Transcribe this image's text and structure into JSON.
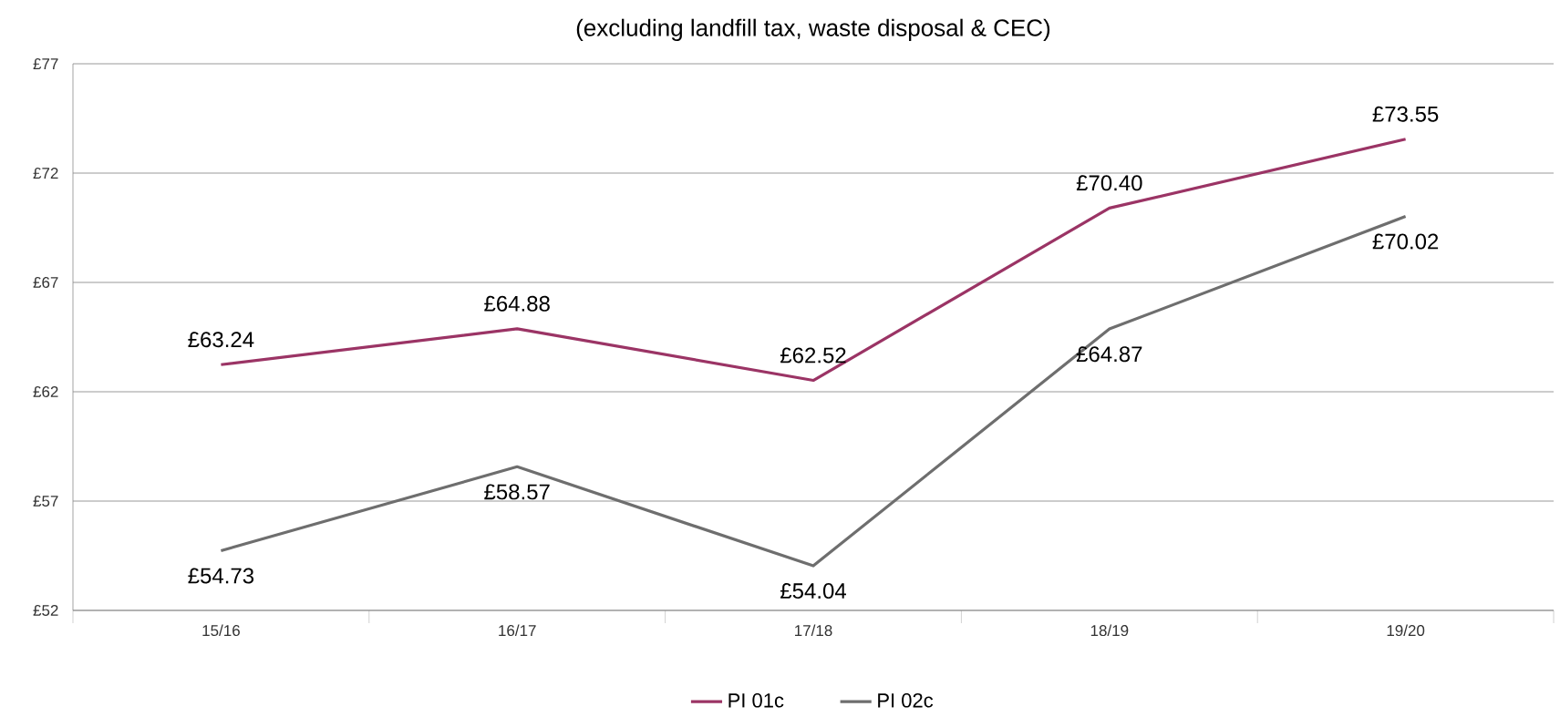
{
  "chart_data": {
    "type": "line",
    "subtitle": "(excluding landfill tax, waste disposal & CEC)",
    "categories": [
      "15/16",
      "16/17",
      "17/18",
      "18/19",
      "19/20"
    ],
    "series": [
      {
        "name": "PI 01c",
        "color": "#9b3465",
        "values": [
          63.24,
          64.88,
          62.52,
          70.4,
          73.55
        ],
        "value_labels": [
          "£63.24",
          "£64.88",
          "£62.52",
          "£70.40",
          "£73.55"
        ]
      },
      {
        "name": "PI 02c",
        "color": "#6e6e6e",
        "values": [
          54.73,
          58.57,
          54.04,
          64.87,
          70.02
        ],
        "value_labels": [
          "£54.73",
          "£58.57",
          "£54.04",
          "£64.87",
          "£70.02"
        ]
      }
    ],
    "ylim": [
      52,
      77
    ],
    "yticks": [
      {
        "value": 52,
        "label": "£52"
      },
      {
        "value": 57,
        "label": "£57"
      },
      {
        "value": 62,
        "label": "£62"
      },
      {
        "value": 67,
        "label": "£67"
      },
      {
        "value": 72,
        "label": "£72"
      },
      {
        "value": 77,
        "label": "£77"
      }
    ],
    "grid": "y",
    "legend": "bottom",
    "marker": "none",
    "line_style": "solid"
  }
}
